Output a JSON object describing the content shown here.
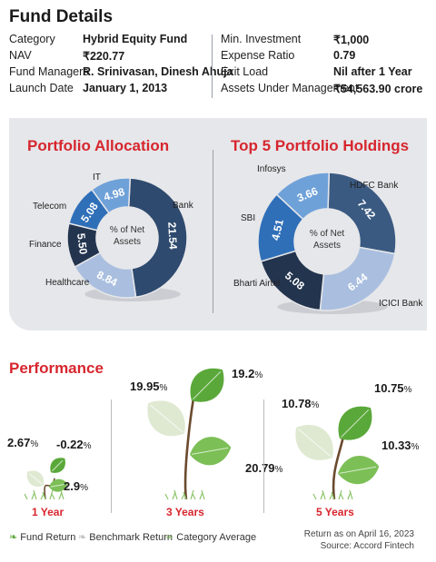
{
  "fund_details": {
    "title": "Fund Details",
    "left": [
      {
        "label": "Category",
        "value": "Hybrid Equity Fund"
      },
      {
        "label": "NAV",
        "value": "₹220.77"
      },
      {
        "label": "Fund Managers",
        "value": "R. Srinivasan, Dinesh Ahuja"
      },
      {
        "label": "Launch Date",
        "value": "January 1, 2013"
      }
    ],
    "right": [
      {
        "label": "Min. Investment",
        "value": "₹1,000"
      },
      {
        "label": "Expense Ratio",
        "value": "0.79"
      },
      {
        "label": "Exit Load",
        "value": "Nil after 1 Year"
      },
      {
        "label": "Assets Under Management",
        "value": "₹54,563.90 crore"
      }
    ]
  },
  "chart_data": [
    {
      "type": "pie",
      "title": "Portfolio Allocation",
      "center_label": [
        "% of Net",
        "Assets"
      ],
      "slices": [
        {
          "name": "Bank",
          "value": 21.54,
          "color": "#2e4a6e"
        },
        {
          "name": "Healthcare",
          "value": 8.84,
          "color": "#aabfdf"
        },
        {
          "name": "Finance",
          "value": 5.5,
          "color": "#23344e"
        },
        {
          "name": "Telecom",
          "value": 5.08,
          "color": "#2f6fb8"
        },
        {
          "name": "IT",
          "value": 4.98,
          "color": "#6fa1d9"
        }
      ]
    },
    {
      "type": "pie",
      "title": "Top 5 Portfolio Holdings",
      "center_label": [
        "% of Net",
        "Assets"
      ],
      "slices": [
        {
          "name": "HDFC Bank",
          "value": 7.42,
          "color": "#3a5a82"
        },
        {
          "name": "ICICI Bank",
          "value": 6.44,
          "color": "#aabfdf"
        },
        {
          "name": "Bharti Airtel",
          "value": 5.08,
          "color": "#23344e"
        },
        {
          "name": "SBI",
          "value": 4.51,
          "color": "#2f6fb8"
        },
        {
          "name": "Infosys",
          "value": 3.66,
          "color": "#6fa1d9"
        }
      ]
    },
    {
      "type": "bar",
      "title": "Performance",
      "categories": [
        "1 Year",
        "3 Years",
        "5 Years"
      ],
      "unit": "%",
      "series": [
        {
          "name": "Fund Return",
          "values": [
            2.67,
            19.95,
            10.78
          ]
        },
        {
          "name": "Benchmark Return",
          "values": [
            -0.22,
            19.2,
            10.75
          ]
        },
        {
          "name": "Category Average",
          "values": [
            2.9,
            20.79,
            10.33
          ]
        }
      ]
    }
  ],
  "legend": {
    "fund": "Fund Return",
    "benchmark": "Benchmark Return",
    "category": "Category Average"
  },
  "footer": {
    "date_note": "Return as on April 16, 2023",
    "source": "Source: Accord Fintech"
  },
  "colors": {
    "accent": "#d7262e",
    "leaf_dark": "#5aa83a",
    "leaf_light": "#cfe6b8",
    "stem": "#6b4a2e"
  }
}
